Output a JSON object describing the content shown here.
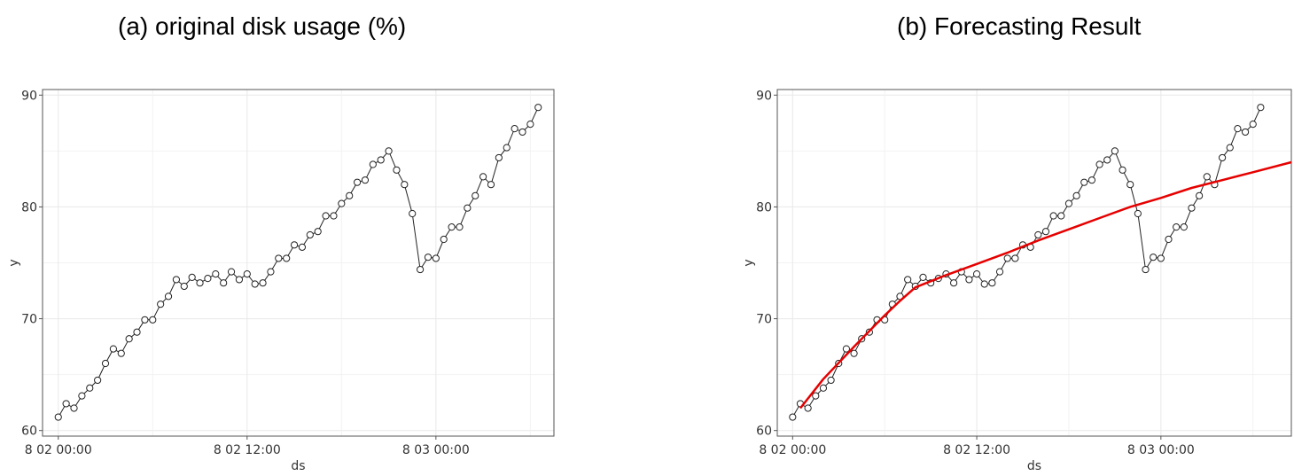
{
  "figure": {
    "panel_a_title": "(a) original disk usage (%)",
    "panel_b_title": "(b) Forecasting Result"
  },
  "colors": {
    "series": "#222222",
    "forecast": "#e60000",
    "grid": "#e8e8e8",
    "frame": "#555555"
  },
  "chart_data": [
    {
      "type": "line",
      "title": "(a) original disk usage (%)",
      "xlabel": "ds",
      "ylabel": "y",
      "x_unit": "hours since 8 02 00:00",
      "xlim": [
        -1,
        31.5
      ],
      "ylim": [
        59.5,
        90.5
      ],
      "x_ticks": [
        0,
        12,
        24
      ],
      "x_tick_labels": [
        "8 02 00:00",
        "8 02 12:00",
        "8 03 00:00"
      ],
      "y_ticks": [
        60,
        70,
        80,
        90
      ],
      "grid": true,
      "series": [
        {
          "marker": "open-circle",
          "x": [
            0,
            0.5,
            1,
            1.5,
            2,
            2.5,
            3,
            3.5,
            4,
            4.5,
            5,
            5.5,
            6,
            6.5,
            7,
            7.5,
            8,
            8.5,
            9,
            9.5,
            10,
            10.5,
            11,
            11.5,
            12,
            12.5,
            13,
            13.5,
            14,
            14.5,
            15,
            15.5,
            16,
            16.5,
            17,
            17.5,
            18,
            18.5,
            19,
            19.5,
            20,
            20.5,
            21,
            21.5,
            22,
            22.5,
            23,
            23.5,
            24,
            24.5,
            25,
            25.5,
            26,
            26.5,
            27,
            27.5,
            28,
            28.5,
            29,
            29.5,
            30,
            30.5
          ],
          "values": [
            61.2,
            62.4,
            62.0,
            63.1,
            63.8,
            64.5,
            66.0,
            67.3,
            66.9,
            68.2,
            68.8,
            69.9,
            69.9,
            71.3,
            72.0,
            73.5,
            72.9,
            73.7,
            73.2,
            73.6,
            74.0,
            73.2,
            74.2,
            73.5,
            74.0,
            73.1,
            73.2,
            74.2,
            75.4,
            75.4,
            76.6,
            76.4,
            77.5,
            77.8,
            79.2,
            79.2,
            80.3,
            81.0,
            82.2,
            82.4,
            83.8,
            84.2,
            85.0,
            83.3,
            82.0,
            79.4,
            74.4,
            75.5,
            75.4,
            77.1,
            78.2,
            78.2,
            79.9,
            81.0,
            82.7,
            82.0,
            84.4,
            85.3,
            87.0,
            86.7,
            87.4,
            88.9
          ]
        }
      ]
    },
    {
      "type": "line",
      "title": "(b) Forecasting Result",
      "xlabel": "ds",
      "ylabel": "y",
      "x_unit": "hours since 8 02 00:00",
      "xlim": [
        -1,
        32.5
      ],
      "ylim": [
        59.5,
        90.5
      ],
      "x_ticks": [
        0,
        12,
        24
      ],
      "x_tick_labels": [
        "8 02 00:00",
        "8 02 12:00",
        "8 03 00:00"
      ],
      "y_ticks": [
        60,
        70,
        80,
        90
      ],
      "grid": true,
      "series": [
        {
          "marker": "open-circle",
          "x": [
            0,
            0.5,
            1,
            1.5,
            2,
            2.5,
            3,
            3.5,
            4,
            4.5,
            5,
            5.5,
            6,
            6.5,
            7,
            7.5,
            8,
            8.5,
            9,
            9.5,
            10,
            10.5,
            11,
            11.5,
            12,
            12.5,
            13,
            13.5,
            14,
            14.5,
            15,
            15.5,
            16,
            16.5,
            17,
            17.5,
            18,
            18.5,
            19,
            19.5,
            20,
            20.5,
            21,
            21.5,
            22,
            22.5,
            23,
            23.5,
            24,
            24.5,
            25,
            25.5,
            26,
            26.5,
            27,
            27.5,
            28,
            28.5,
            29,
            29.5,
            30,
            30.5
          ],
          "values": [
            61.2,
            62.4,
            62.0,
            63.1,
            63.8,
            64.5,
            66.0,
            67.3,
            66.9,
            68.2,
            68.8,
            69.9,
            69.9,
            71.3,
            72.0,
            73.5,
            72.9,
            73.7,
            73.2,
            73.6,
            74.0,
            73.2,
            74.2,
            73.5,
            74.0,
            73.1,
            73.2,
            74.2,
            75.4,
            75.4,
            76.6,
            76.4,
            77.5,
            77.8,
            79.2,
            79.2,
            80.3,
            81.0,
            82.2,
            82.4,
            83.8,
            84.2,
            85.0,
            83.3,
            82.0,
            79.4,
            74.4,
            75.5,
            75.4,
            77.1,
            78.2,
            78.2,
            79.9,
            81.0,
            82.7,
            82.0,
            84.4,
            85.3,
            87.0,
            86.7,
            87.4,
            88.9
          ]
        },
        {
          "line_only": true,
          "x": [
            0.5,
            2,
            4,
            6,
            7,
            8,
            10,
            12,
            14,
            16,
            18,
            20,
            22,
            24,
            26,
            28,
            30,
            32.5
          ],
          "values": [
            62.0,
            64.6,
            67.5,
            70.3,
            71.6,
            72.8,
            73.9,
            74.9,
            75.9,
            77.0,
            78.0,
            79.0,
            80.0,
            80.8,
            81.7,
            82.4,
            83.1,
            84.0
          ]
        }
      ]
    }
  ]
}
